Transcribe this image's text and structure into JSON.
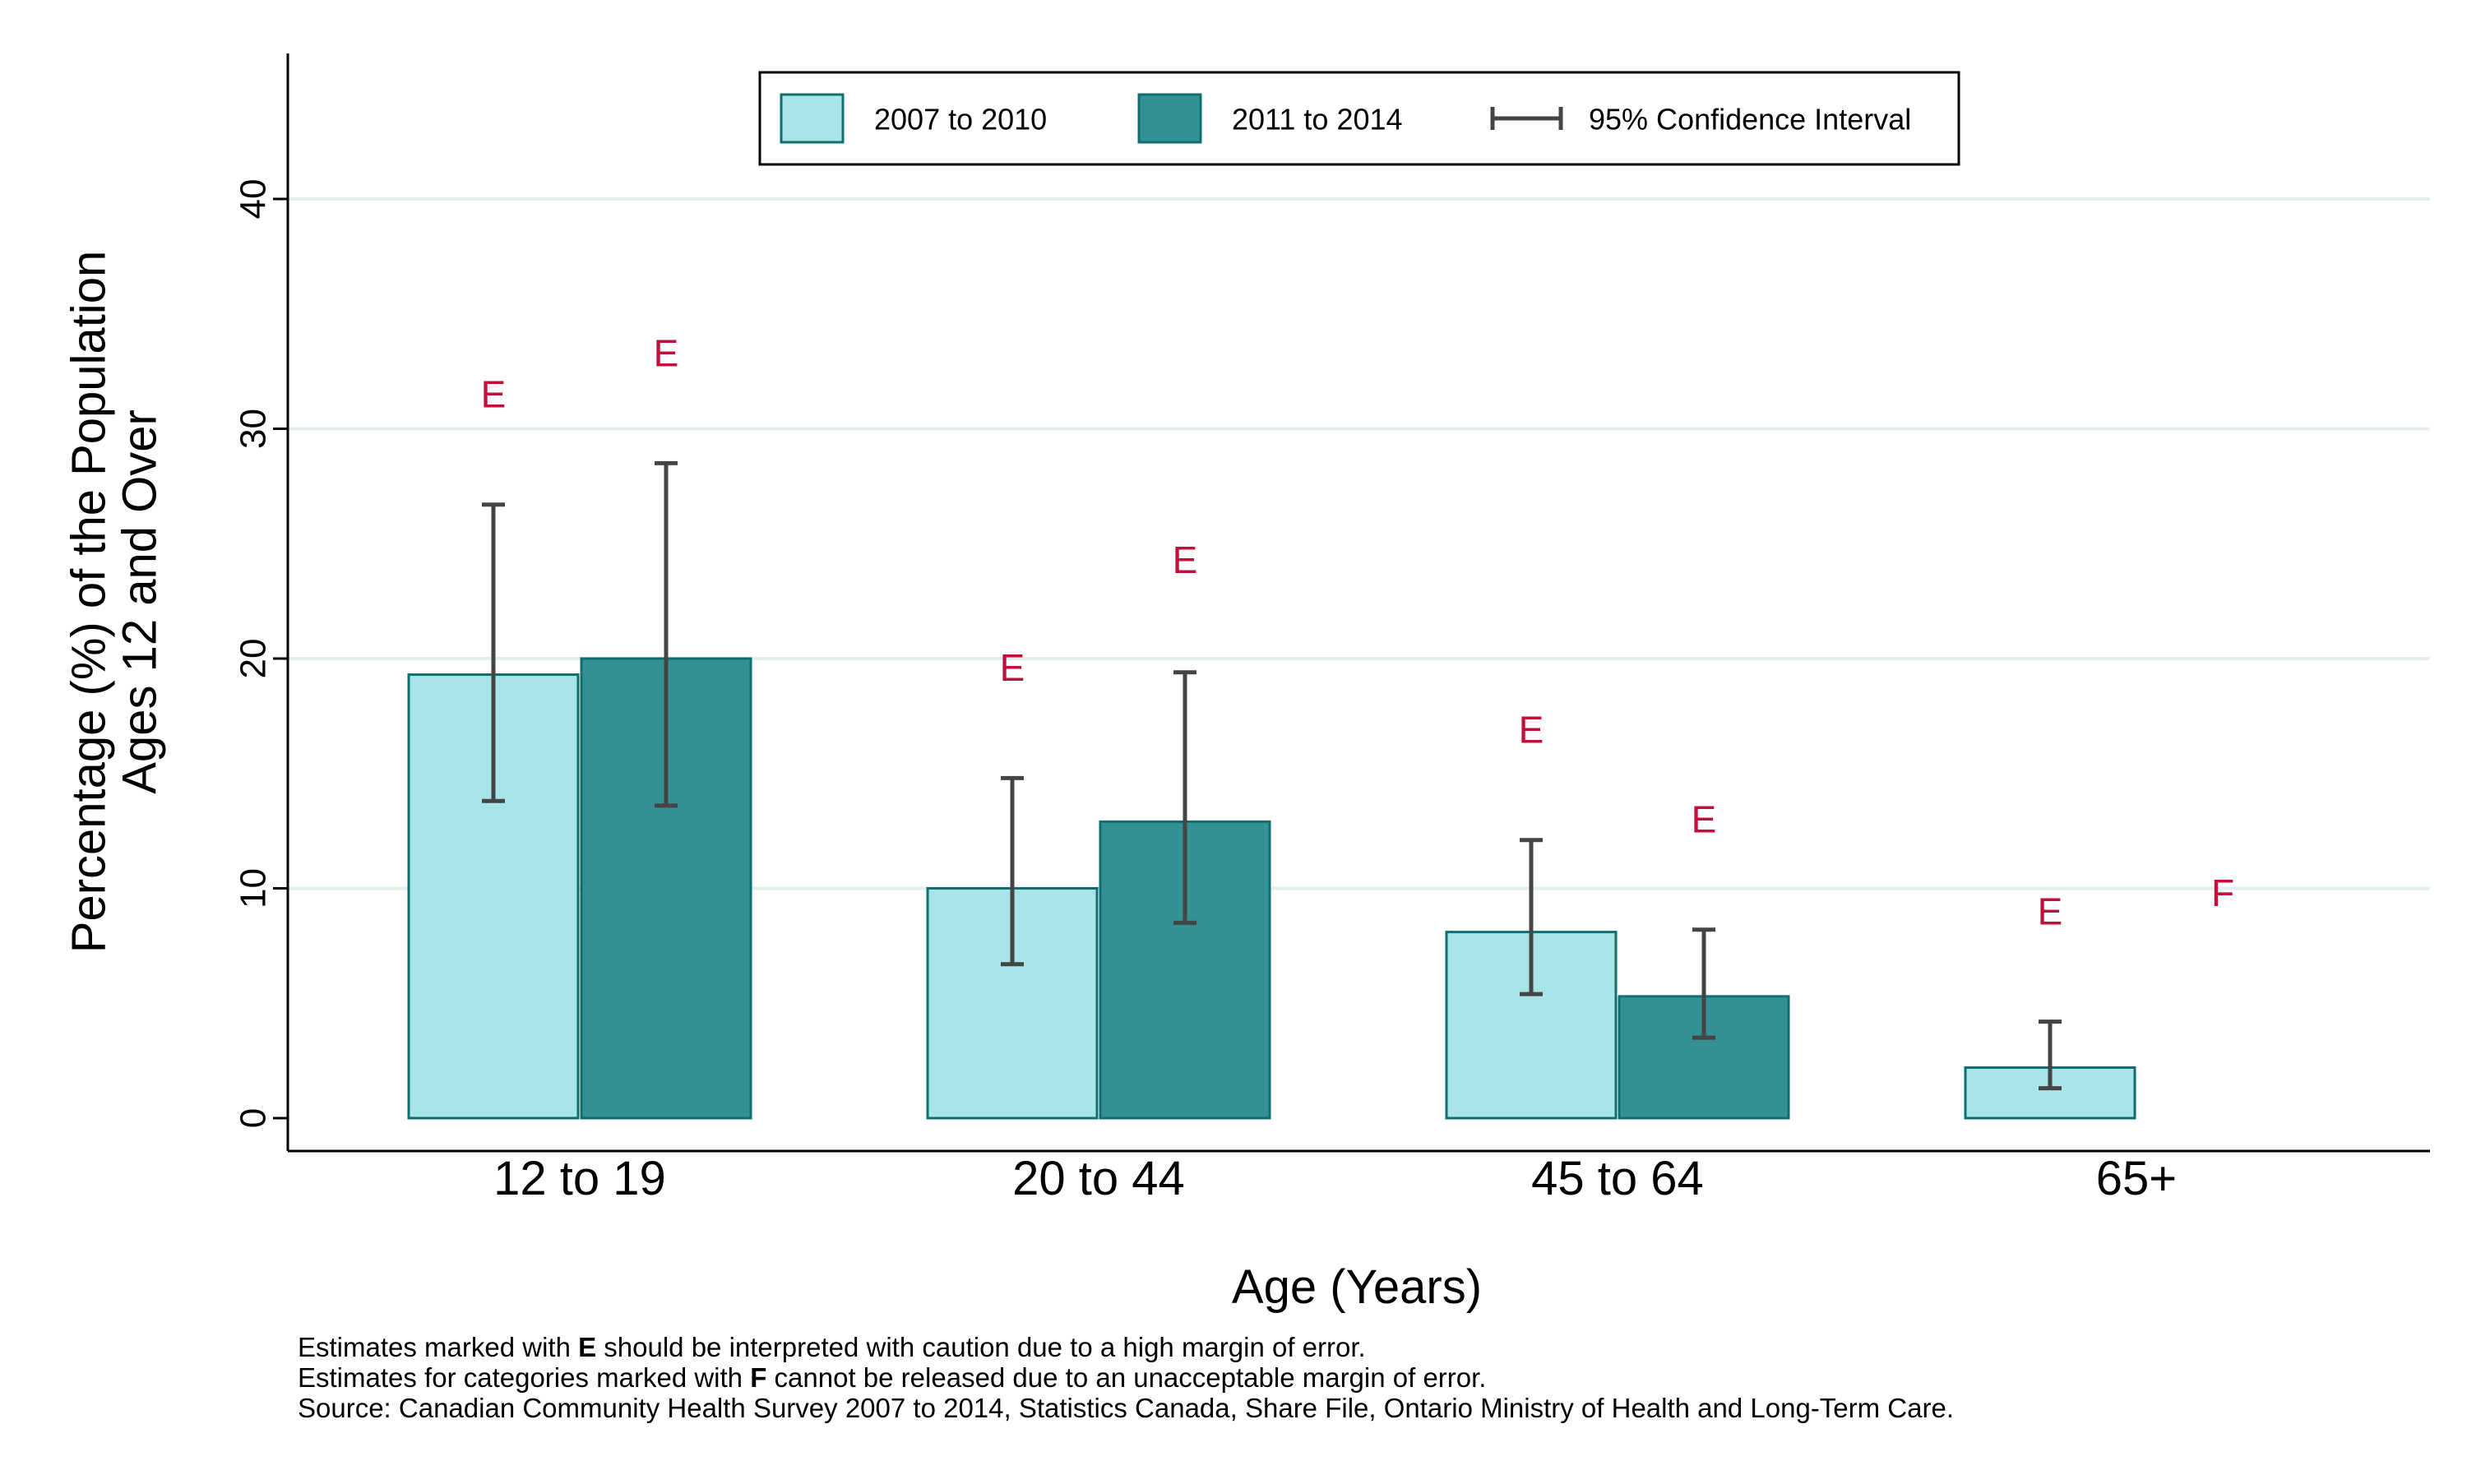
{
  "chart_data": {
    "type": "bar",
    "title": "",
    "xlabel": "Age (Years)",
    "ylabel_line1": "Percentage (%) of the Population",
    "ylabel_line2": "Ages 12 and Over",
    "categories": [
      "12 to 19",
      "20 to 44",
      "45 to 64",
      "65+"
    ],
    "ylim": [
      0,
      46
    ],
    "yticks": [
      0,
      10,
      20,
      30,
      40
    ],
    "grid": true,
    "legend_position": "top-center",
    "series": [
      {
        "name": "2007 to 2010",
        "color": "#a8e4e8",
        "values": [
          19.3,
          10.0,
          8.1,
          2.2
        ],
        "ci_low": [
          13.8,
          6.7,
          5.4,
          1.3
        ],
        "ci_high": [
          26.7,
          14.8,
          12.1,
          4.2
        ],
        "flags": [
          "E",
          "E",
          "E",
          "E"
        ],
        "flag_y": [
          31.5,
          19.6,
          16.9,
          9.0
        ]
      },
      {
        "name": "2011 to 2014",
        "color": "#339193",
        "values": [
          20.0,
          12.9,
          5.3,
          null
        ],
        "ci_low": [
          13.6,
          8.5,
          3.5,
          null
        ],
        "ci_high": [
          28.5,
          19.4,
          8.2,
          null
        ],
        "flags": [
          "E",
          "E",
          "E",
          "F"
        ],
        "flag_y": [
          33.3,
          24.3,
          13.0,
          9.8
        ]
      }
    ],
    "ci_legend_label": "95% Confidence Interval",
    "flag_color": "#c0103a",
    "notes": {
      "e_prefix": "Estimates marked with ",
      "e_mark": "E",
      "e_suffix": " should be interpreted with caution due to a high margin of error.",
      "f_prefix": "Estimates for categories marked with ",
      "f_mark": "F",
      "f_suffix": " cannot be released due to an unacceptable margin of error.",
      "source": "Source: Canadian Community Health Survey 2007 to 2014, Statistics Canada, Share File, Ontario Ministry of Health and Long-Term Care."
    }
  }
}
